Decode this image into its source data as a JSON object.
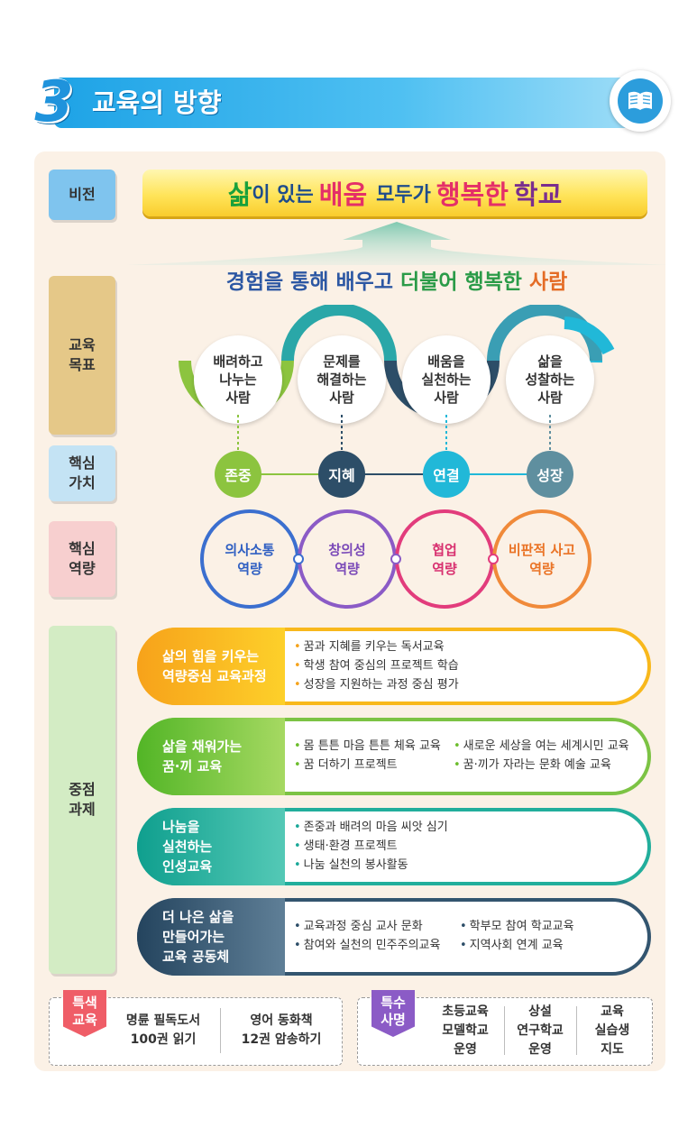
{
  "header": {
    "number": "3",
    "title": "교육의 방향"
  },
  "sections": {
    "vision": "비전",
    "goal": "교육\n목표",
    "value": "핵심\n가치",
    "competency": "핵심\n역량",
    "tasks": "중점\n과제"
  },
  "vision": {
    "part1": "삶",
    "part2": "이 있는",
    "part3": "배움",
    "part4": "모두가",
    "part5": "행복한",
    "part6": "학교"
  },
  "goal_title": {
    "a": "경험을 통해 배우고",
    "b": "더불어 행복한",
    "c": "사람"
  },
  "goals": [
    "배려하고\n나누는\n사람",
    "문제를\n해결하는\n사람",
    "배움을\n실천하는\n사람",
    "삶을\n성찰하는\n사람"
  ],
  "core_values": [
    "존중",
    "지혜",
    "연결",
    "성장"
  ],
  "competencies": [
    "의사소통\n역량",
    "창의성\n역량",
    "협업\n역량",
    "비판적 사고\n역량"
  ],
  "tasks": [
    {
      "label": "삶의 힘을 키우는\n역량중심 교육과정",
      "items": [
        "꿈과 지혜를 키우는 독서교육",
        "학생 참여 중심의 프로젝트 학습",
        "성장을 지원하는 과정 중심 평가"
      ]
    },
    {
      "label": "삶을 채워가는\n꿈·끼 교육",
      "items": [
        "몸 튼튼 마음 튼튼 체육 교육",
        "꿈 더하기 프로젝트",
        "새로운 세상을 여는 세계시민 교육",
        "꿈·끼가 자라는 문화 예술 교육"
      ]
    },
    {
      "label": "나눔을\n실천하는\n인성교육",
      "items": [
        "존중과 배려의 마음 씨앗 심기",
        "생태·환경 프로젝트",
        "나눔 실천의 봉사활동"
      ]
    },
    {
      "label": "더 나은 삶을\n만들어가는\n교육 공동체",
      "items": [
        "교육과정 중심 교사 문화",
        "참여와 실천의 민주주의교육",
        "학부모 참여 학교교육",
        "지역사회 연계 교육"
      ]
    }
  ],
  "special": {
    "tag": "특색\n교육",
    "items": [
      "명륜 필독도서\n100권 읽기",
      "영어 동화책\n12권 암송하기"
    ]
  },
  "mission": {
    "tag": "특수\n사명",
    "items": [
      "초등교육\n모델학교\n운영",
      "상설\n연구학교\n운영",
      "교육\n실습생\n지도"
    ]
  },
  "colors": {
    "header": "#1ea3e6",
    "panel": "#fbf1e6",
    "vision_gold": "#ffe45a",
    "orange": "#f5a31c",
    "green": "#6cbd2c",
    "teal": "#1aa898",
    "navy": "#2d4e68",
    "pink": "#ef5d67",
    "purple": "#8b5bc6"
  },
  "icons": {
    "header": "book-icon"
  }
}
